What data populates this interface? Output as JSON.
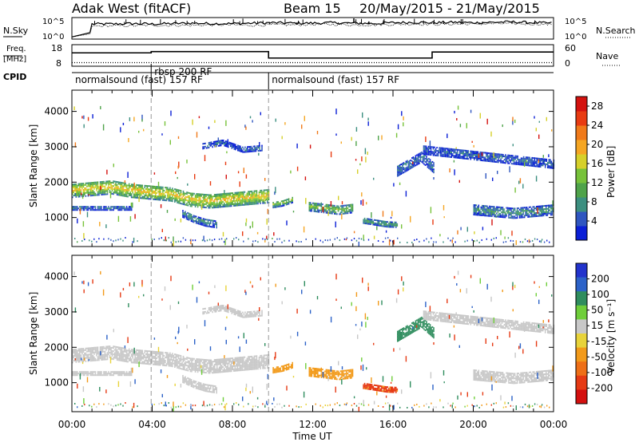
{
  "header": {
    "title": "Adak West (fitACF)",
    "beam": "Beam 15",
    "date_range": "20/May/2015 - 21/May/2015"
  },
  "strip_labels": {
    "nsky": "N.Sky",
    "nsearch": "N.Search",
    "freq_top": "Freq.",
    "freq_unit": "[MHz]",
    "nave": "Nave",
    "cpid": "CPID",
    "nsky_ticks": [
      "10^5",
      "10^0"
    ],
    "nsearch_ticks": [
      "10^5",
      "10^0"
    ],
    "freq_ticks": [
      "18",
      "8"
    ],
    "nave_ticks": [
      "60",
      "0"
    ]
  },
  "cpid_segments": [
    {
      "label": "normalsound (fast) 157 RF",
      "start": 0.0,
      "end": 9.8
    },
    {
      "label": "rbsp 200 RF",
      "start": 3.95,
      "end": 5.7
    },
    {
      "label": "normalsound (fast) 157 RF",
      "start": 9.8,
      "end": 24.0
    }
  ],
  "colors": {
    "power_scale": [
      "#0a1fd6",
      "#2f56c0",
      "#3c8f80",
      "#4fa34a",
      "#77c23a",
      "#d6d02a",
      "#f5a623",
      "#f07a1a",
      "#e83b12",
      "#d4120f"
    ],
    "velocity_scale": [
      "#2233cc",
      "#2c62c8",
      "#2f8d5e",
      "#6fce3a",
      "#c8c8c8",
      "#e8d33a",
      "#f29a1a",
      "#ee6f17",
      "#e63a14",
      "#d4100f"
    ],
    "ground_scatter": "#c8c8c8"
  },
  "chart_data": [
    {
      "type": "line",
      "title": "N.Sky / N.Search",
      "x_unit": "hours UT",
      "x": [
        0,
        0.9,
        1,
        2,
        3,
        4,
        5,
        6,
        7,
        8,
        9,
        10,
        11,
        12,
        13,
        14,
        15,
        16,
        17,
        18,
        19,
        20,
        21,
        22,
        23,
        24
      ],
      "series": [
        {
          "name": "N.Sky",
          "values": [
            0.5,
            1.5,
            3.5,
            3.5,
            3.6,
            3.5,
            3.6,
            3.7,
            3.6,
            3.6,
            3.7,
            3.8,
            3.7,
            3.7,
            3.8,
            3.7,
            3.6,
            3.8,
            3.9,
            3.8,
            3.9,
            3.8,
            3.9,
            4.0,
            3.8,
            3.7
          ]
        },
        {
          "name": "N.Search",
          "values": [
            0.5,
            1.2,
            3.0,
            3.1,
            3.1,
            3.2,
            3.2,
            3.2,
            3.3,
            3.3,
            3.2,
            3.3,
            3.3,
            3.4,
            3.4,
            3.3,
            3.3,
            3.4,
            3.5,
            3.4,
            3.5,
            3.5,
            3.6,
            3.6,
            3.5,
            3.4
          ]
        }
      ],
      "ylim": [
        0,
        5
      ]
    },
    {
      "type": "line",
      "title": "Freq / Nave",
      "x_unit": "hours UT",
      "series": [
        {
          "name": "Freq.",
          "steps": [
            [
              0,
              14.2
            ],
            [
              3.95,
              14.8
            ],
            [
              9.8,
              11.8
            ],
            [
              17.95,
              14.6
            ],
            [
              24,
              14.6
            ]
          ]
        },
        {
          "name": "Nave",
          "steps": [
            [
              0,
              10
            ],
            [
              24,
              10
            ]
          ]
        }
      ],
      "freq_ylim": [
        8,
        18
      ],
      "nave_ylim": [
        0,
        60
      ]
    },
    {
      "type": "heatmap",
      "title": "Power",
      "xlabel": "",
      "ylabel": "Slant Range [km]",
      "x_ticks": [
        "00:00",
        "04:00",
        "08:00",
        "12:00",
        "16:00",
        "20:00",
        "00:00"
      ],
      "xlim": [
        0,
        24
      ],
      "ylim": [
        180,
        4600
      ],
      "y_ticks": [
        1000,
        2000,
        3000,
        4000
      ],
      "colorbar_label": "Power [dB]",
      "colorbar_ticks": [
        "4",
        "8",
        "12",
        "16",
        "20",
        "24",
        "28"
      ],
      "colorbar_range": [
        0,
        30
      ],
      "regions": [
        {
          "t0": 0.0,
          "t1": 9.8,
          "r_center": [
            1750,
            1800,
            1850,
            1750,
            1700,
            1650,
            1500,
            1450,
            1500,
            1550,
            1600
          ],
          "width": 400,
          "value": 17
        },
        {
          "t0": 0.0,
          "t1": 3.0,
          "r_center": [
            1250,
            1250,
            1250,
            1250
          ],
          "width": 120,
          "value": 6
        },
        {
          "t0": 5.5,
          "t1": 7.2,
          "r_center": [
            1100,
            950,
            850,
            800
          ],
          "width": 220,
          "value": 7
        },
        {
          "t0": 10.0,
          "t1": 11.0,
          "r_center": [
            1350,
            1400,
            1500
          ],
          "width": 180,
          "value": 12
        },
        {
          "t0": 11.8,
          "t1": 14.0,
          "r_center": [
            1300,
            1250,
            1200,
            1250
          ],
          "width": 260,
          "value": 12
        },
        {
          "t0": 14.5,
          "t1": 16.2,
          "r_center": [
            900,
            850,
            800,
            780
          ],
          "width": 160,
          "value": 9
        },
        {
          "t0": 16.2,
          "t1": 18.0,
          "r_center": [
            2300,
            2500,
            2700,
            2400
          ],
          "width": 300,
          "value": 6
        },
        {
          "t0": 20.0,
          "t1": 24.0,
          "r_center": [
            1200,
            1150,
            1100,
            1150,
            1200
          ],
          "width": 280,
          "value": 8
        },
        {
          "t0": 17.5,
          "t1": 24.0,
          "r_center": [
            2900,
            2800,
            2700,
            2600,
            2500
          ],
          "width": 260,
          "value": 5
        },
        {
          "t0": 6.5,
          "t1": 9.5,
          "r_center": [
            3000,
            3100,
            2900,
            2950
          ],
          "width": 150,
          "value": 5
        }
      ]
    },
    {
      "type": "heatmap",
      "title": "Velocity",
      "xlabel": "Time UT",
      "ylabel": "Slant Range [km]",
      "x_ticks": [
        "00:00",
        "04:00",
        "08:00",
        "12:00",
        "16:00",
        "20:00",
        "00:00"
      ],
      "xlim": [
        0,
        24
      ],
      "ylim": [
        180,
        4600
      ],
      "y_ticks": [
        1000,
        2000,
        3000,
        4000
      ],
      "colorbar_label": "Velocity [m s⁻¹]",
      "colorbar_ticks": [
        "200",
        "100",
        "50",
        "15",
        "-15",
        "-50",
        "-100",
        "-200"
      ],
      "regions": [
        {
          "t0": 0.0,
          "t1": 9.8,
          "r_center": [
            1750,
            1800,
            1850,
            1750,
            1700,
            1650,
            1500,
            1450,
            1500,
            1550,
            1600
          ],
          "width": 400,
          "value": 0
        },
        {
          "t0": 0.0,
          "t1": 3.0,
          "r_center": [
            1250,
            1250,
            1250,
            1250
          ],
          "width": 120,
          "value": 0
        },
        {
          "t0": 5.5,
          "t1": 7.2,
          "r_center": [
            1100,
            950,
            850,
            800
          ],
          "width": 220,
          "value": 0
        },
        {
          "t0": 10.0,
          "t1": 11.0,
          "r_center": [
            1350,
            1400,
            1500
          ],
          "width": 180,
          "value": -40
        },
        {
          "t0": 11.8,
          "t1": 14.0,
          "r_center": [
            1300,
            1250,
            1200,
            1250
          ],
          "width": 260,
          "value": -60
        },
        {
          "t0": 14.5,
          "t1": 16.2,
          "r_center": [
            900,
            850,
            800,
            780
          ],
          "width": 160,
          "value": -80
        },
        {
          "t0": 16.2,
          "t1": 18.0,
          "r_center": [
            2300,
            2500,
            2700,
            2400
          ],
          "width": 300,
          "value": 40
        },
        {
          "t0": 20.0,
          "t1": 24.0,
          "r_center": [
            1200,
            1150,
            1100,
            1150,
            1200
          ],
          "width": 280,
          "value": 0
        },
        {
          "t0": 17.5,
          "t1": 24.0,
          "r_center": [
            2900,
            2800,
            2700,
            2600,
            2500
          ],
          "width": 260,
          "value": 0
        },
        {
          "t0": 6.5,
          "t1": 9.5,
          "r_center": [
            3000,
            3100,
            2900,
            2950
          ],
          "width": 150,
          "value": 0
        }
      ]
    }
  ]
}
